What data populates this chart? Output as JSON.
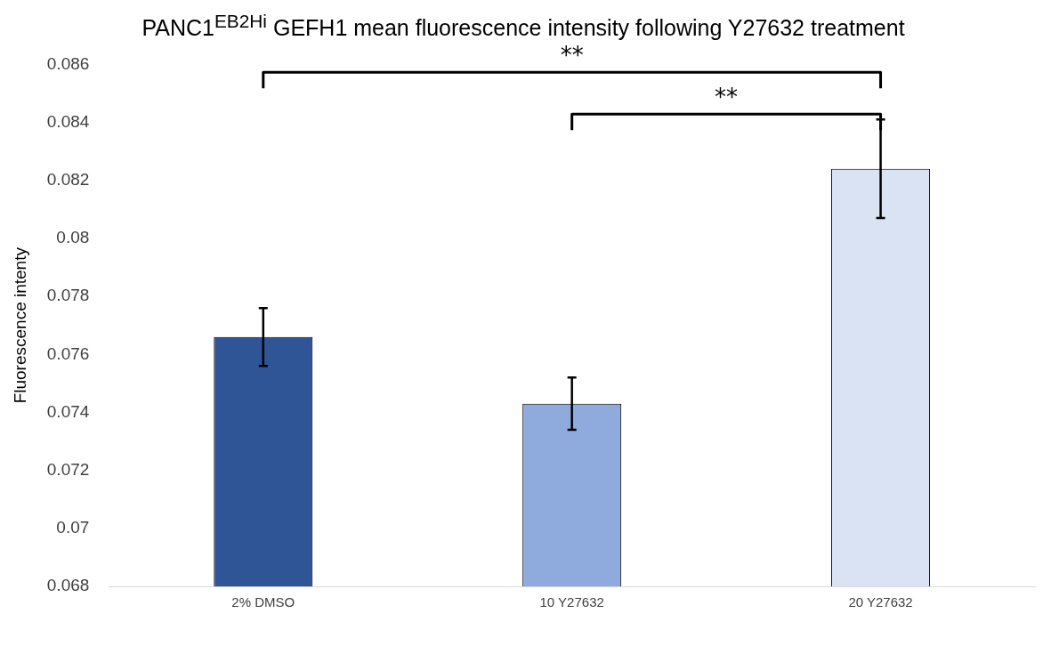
{
  "chart_data": {
    "type": "bar",
    "title": "PANC1$^{EB2Hi}$ GEFH1 mean fluorescence intensity following Y27632 treatment",
    "ylabel": "Fluorescence intenty",
    "categories": [
      "2% DMSO",
      "10 Y27632",
      "20 Y27632"
    ],
    "values": [
      0.0766,
      0.0743,
      0.0824
    ],
    "errors": [
      0.001,
      0.0009,
      0.0017
    ],
    "colors": [
      "#2f5597",
      "#8faadc",
      "#dae3f3"
    ],
    "ylim": [
      0.068,
      0.086
    ],
    "yticks": [
      0.068,
      0.07,
      0.072,
      0.074,
      0.076,
      0.078,
      0.08,
      0.082,
      0.084,
      0.086
    ],
    "grid": false,
    "legend": false,
    "annotations": [
      "**",
      "**"
    ]
  }
}
